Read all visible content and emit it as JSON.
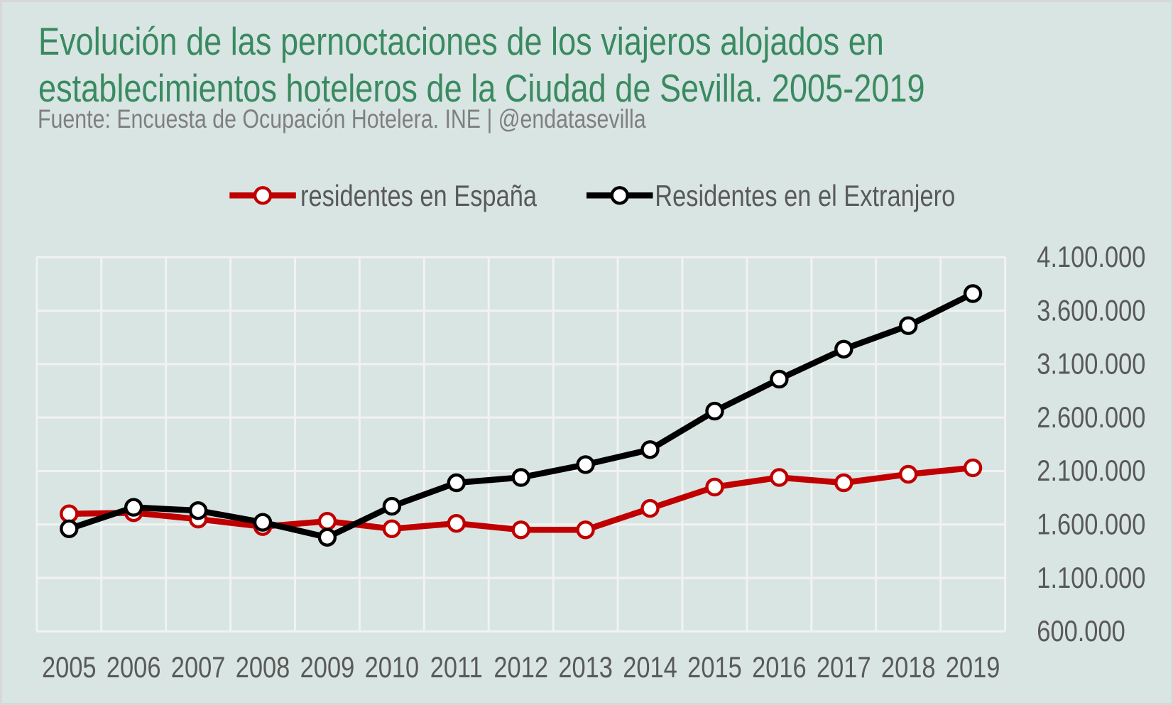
{
  "chart_data": {
    "type": "line",
    "title": "Evolución de las pernoctaciones de los viajeros alojados en establecimientos hoteleros de la Ciudad de Sevilla. 2005-2019",
    "subtitle": "Fuente: Encuesta de Ocupación Hotelera. INE | @endatasevilla",
    "categories": [
      "2005",
      "2006",
      "2007",
      "2008",
      "2009",
      "2010",
      "2011",
      "2012",
      "2013",
      "2014",
      "2015",
      "2016",
      "2017",
      "2018",
      "2019"
    ],
    "series": [
      {
        "name": "residentes en España",
        "color": "#c00000",
        "values": [
          1700000,
          1710000,
          1650000,
          1580000,
          1630000,
          1560000,
          1610000,
          1550000,
          1550000,
          1750000,
          1950000,
          2040000,
          1990000,
          2070000,
          2130000
        ]
      },
      {
        "name": "Residentes en el Extranjero",
        "color": "#000000",
        "values": [
          1560000,
          1760000,
          1730000,
          1620000,
          1480000,
          1770000,
          1990000,
          2040000,
          2160000,
          2300000,
          2660000,
          2960000,
          3240000,
          3460000,
          3760000
        ]
      }
    ],
    "ylim": [
      600000,
      4100000
    ],
    "ytick_step": 500000,
    "ytick_labels": [
      "600.000",
      "1.100.000",
      "1.600.000",
      "2.100.000",
      "2.600.000",
      "3.100.000",
      "3.600.000",
      "4.100.000"
    ],
    "xlabel": "",
    "ylabel": "",
    "grid": true,
    "legend_position": "top",
    "colors": {
      "background": "#d9e5e2",
      "frame_border": "#d8d8d8",
      "gridline": "#f2f2f2",
      "title": "#398a61",
      "subtitle": "#7f7f7f",
      "tick_label": "#595959",
      "legend_label": "#595959",
      "marker_fill": "#ffffff"
    }
  }
}
